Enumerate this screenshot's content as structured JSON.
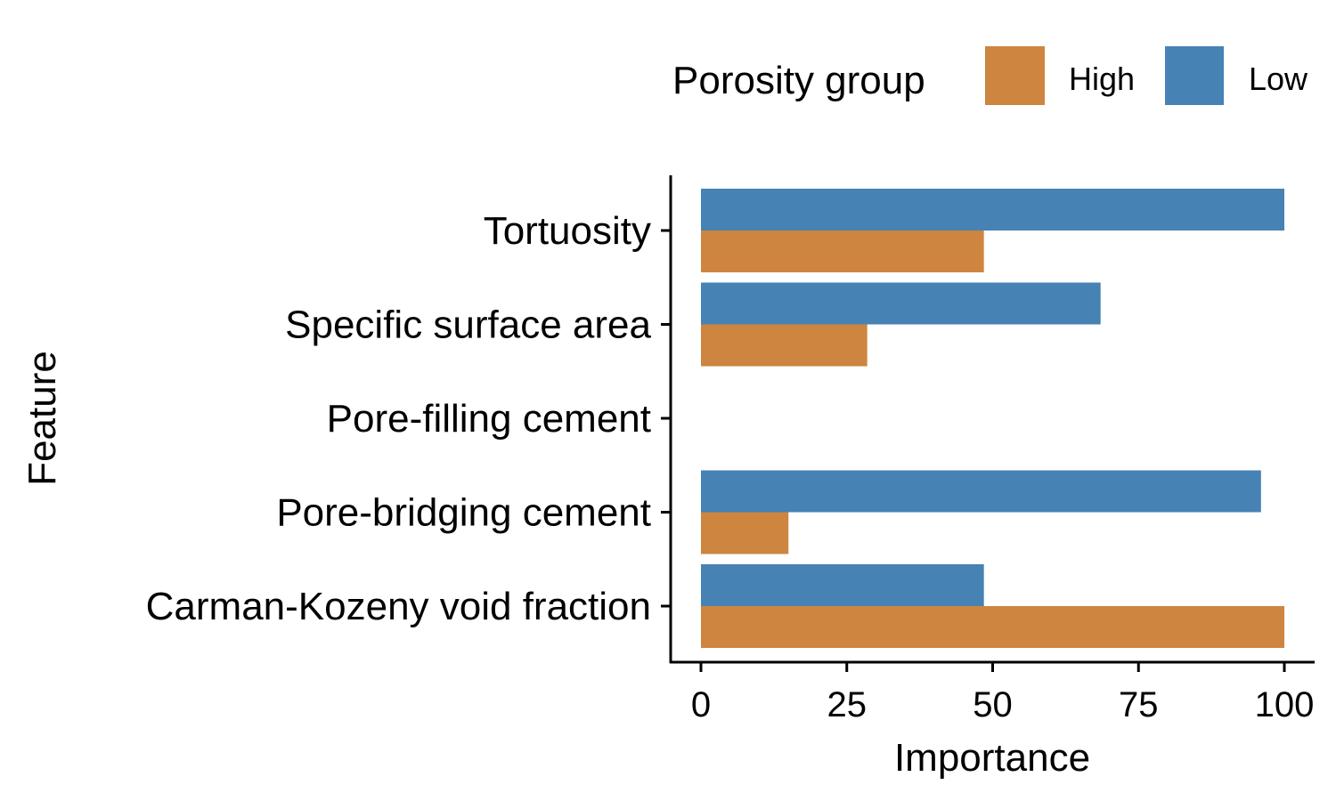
{
  "chart_data": {
    "type": "bar",
    "orientation": "horizontal",
    "xlabel": "Importance",
    "ylabel": "Feature",
    "xlim": [
      0,
      100
    ],
    "xticks": [
      "0",
      "25",
      "50",
      "75",
      "100"
    ],
    "grid": false,
    "legend_position": "top",
    "legend": {
      "title": "Porosity group",
      "entries": [
        "High",
        "Low"
      ]
    },
    "categories": [
      "Tortuosity",
      "Specific surface area",
      "Pore-filling cement",
      "Pore-bridging cement",
      "Carman-Kozeny void fraction"
    ],
    "series": [
      {
        "name": "Low",
        "color": "#4682B4",
        "values": [
          100,
          68.5,
          0,
          96,
          48.5
        ]
      },
      {
        "name": "High",
        "color": "#CD853F",
        "values": [
          48.5,
          28.5,
          0,
          15,
          100
        ]
      }
    ]
  }
}
